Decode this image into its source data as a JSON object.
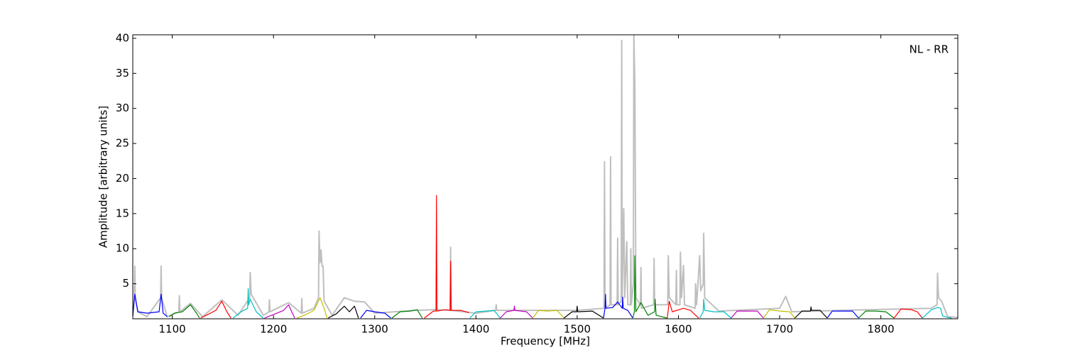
{
  "chart_data": {
    "type": "line",
    "annotation": "NL - RR",
    "legend_position": "upper right",
    "xlabel": "Frequency [MHz]",
    "ylabel": "Amplitude [arbitrary units]",
    "xlim": [
      1061,
      1876
    ],
    "ylim": [
      0,
      40.5
    ],
    "xticks": [
      1100,
      1200,
      1300,
      1400,
      1500,
      1600,
      1700,
      1800
    ],
    "yticks": [
      5,
      10,
      15,
      20,
      25,
      30,
      35,
      40
    ],
    "grid": false,
    "series": [
      {
        "color": "#bfbfbf",
        "width": 2,
        "x": [
          1061,
          1062.5,
          1063,
          1063.5,
          1066,
          1075,
          1088.5,
          1089,
          1089.5,
          1095,
          1106.5,
          1107,
          1107.5,
          1118,
          1130,
          1149,
          1165,
          1176.5,
          1177,
          1178,
          1190,
          1195.5,
          1196,
          1196.5,
          1215,
          1227.5,
          1228,
          1228.5,
          1240,
          1244.5,
          1245,
          1246,
          1247,
          1248,
          1249,
          1250,
          1258,
          1270,
          1280,
          1290,
          1300,
          1340,
          1361,
          1374.5,
          1375,
          1375.5,
          1400,
          1419.5,
          1420,
          1420.5,
          1500,
          1526.5,
          1527,
          1527.5,
          1532.5,
          1533,
          1533.5,
          1539.5,
          1540,
          1540.5,
          1543.5,
          1544,
          1544.5,
          1546,
          1547,
          1549,
          1550,
          1552.5,
          1553,
          1553.5,
          1555.5,
          1556,
          1557,
          1558,
          1562.5,
          1563,
          1563.5,
          1575.5,
          1576,
          1576.5,
          1589.5,
          1590,
          1591,
          1597.5,
          1598,
          1598.5,
          1601.5,
          1602,
          1603,
          1605,
          1606,
          1616.5,
          1617,
          1618,
          1621,
          1622,
          1624.5,
          1625,
          1626,
          1640,
          1700,
          1706,
          1712,
          1760,
          1850,
          1855.5,
          1856,
          1857,
          1860,
          1866,
          1876
        ],
        "values": [
          0.5,
          3,
          7.5,
          3,
          1,
          0.3,
          3,
          7.5,
          3,
          0.3,
          1,
          3.3,
          1,
          2.2,
          0.3,
          2.7,
          0.5,
          3,
          6.6,
          3.5,
          0.5,
          1,
          2.7,
          1,
          2.3,
          0.8,
          2.9,
          0.8,
          1.5,
          3,
          12.5,
          8,
          9.8,
          7.5,
          7.5,
          2.5,
          0.5,
          3,
          2.5,
          2.4,
          0.8,
          1.2,
          1.3,
          1.2,
          10.2,
          1.2,
          0.8,
          1.2,
          2,
          1.2,
          1.2,
          1.5,
          22.4,
          1.5,
          2,
          23.1,
          2,
          2,
          11.5,
          2,
          2.5,
          39.7,
          3,
          15.7,
          3,
          11,
          2,
          2,
          10,
          2,
          5,
          40.5,
          33.5,
          3,
          2,
          7.3,
          1.5,
          2,
          8.6,
          2,
          2,
          9,
          3,
          2,
          6.9,
          2,
          2,
          9.5,
          3,
          7.6,
          2,
          1.5,
          5,
          2,
          9,
          4,
          5,
          12.2,
          3,
          1.1,
          1.5,
          3.2,
          1,
          1.2,
          1.5,
          2,
          6.5,
          3,
          2.5,
          0.3,
          0.2
        ]
      },
      {
        "color": "#0000ff",
        "x": [
          1061,
          1063,
          1066,
          1075,
          1087,
          1089,
          1091,
          1095
        ],
        "values": [
          0.3,
          3.5,
          1,
          0.8,
          1,
          3.5,
          0.8,
          0.3
        ]
      },
      {
        "color": "#008000",
        "x": [
          1097,
          1102,
          1110,
          1118,
          1124,
          1127
        ],
        "values": [
          0.3,
          0.8,
          1,
          2,
          0.8,
          0.1
        ]
      },
      {
        "color": "#ff0000",
        "x": [
          1128,
          1135,
          1143,
          1149,
          1154,
          1158
        ],
        "values": [
          0.1,
          0.6,
          1.2,
          2.5,
          1,
          0.1
        ]
      },
      {
        "color": "#00bfbf",
        "x": [
          1160,
          1168,
          1174.5,
          1175,
          1175.5,
          1177,
          1183,
          1190
        ],
        "values": [
          0.1,
          1,
          1.5,
          4.3,
          2,
          2.8,
          1,
          0.1
        ]
      },
      {
        "color": "#bf00bf",
        "x": [
          1191,
          1200,
          1210,
          1215,
          1218,
          1221
        ],
        "values": [
          0.1,
          0.6,
          1.2,
          2,
          1,
          0.1
        ]
      },
      {
        "color": "#bfbf00",
        "x": [
          1223,
          1232,
          1240,
          1246,
          1250,
          1253
        ],
        "values": [
          0.1,
          0.6,
          1.2,
          3,
          1.5,
          0.1
        ]
      },
      {
        "color": "#000000",
        "x": [
          1254,
          1262,
          1270,
          1275,
          1280,
          1284
        ],
        "values": [
          0.1,
          0.7,
          1.8,
          1,
          1.8,
          0.1
        ]
      },
      {
        "color": "#0000ff",
        "x": [
          1286,
          1292,
          1300,
          1310,
          1316
        ],
        "values": [
          0.1,
          1.2,
          1,
          0.8,
          0.1
        ]
      },
      {
        "color": "#008000",
        "x": [
          1317,
          1325,
          1335,
          1342,
          1347
        ],
        "values": [
          0.1,
          1,
          1.1,
          1.3,
          0.1
        ]
      },
      {
        "color": "#ff0000",
        "x": [
          1349,
          1358,
          1360.5,
          1361,
          1361.5,
          1370,
          1374.5,
          1375,
          1375.5,
          1385,
          1393
        ],
        "values": [
          0.1,
          1.1,
          1.1,
          17.6,
          1.1,
          1.3,
          1.2,
          8.2,
          1.2,
          1.2,
          0.9
        ]
      },
      {
        "color": "#00bfbf",
        "x": [
          1394,
          1400,
          1410,
          1418,
          1424
        ],
        "values": [
          0.1,
          1,
          1.1,
          1.2,
          0.1
        ]
      },
      {
        "color": "#bf00bf",
        "x": [
          1424,
          1430,
          1437.5,
          1438,
          1438.5,
          1450,
          1456
        ],
        "values": [
          0.1,
          1,
          1.2,
          1.8,
          1.2,
          1,
          0.1
        ]
      },
      {
        "color": "#bfbf00",
        "x": [
          1456,
          1462,
          1470,
          1480,
          1487
        ],
        "values": [
          0.1,
          1.2,
          1.1,
          1.2,
          0.1
        ]
      },
      {
        "color": "#000000",
        "x": [
          1487,
          1495,
          1499.5,
          1500,
          1500.5,
          1515,
          1526
        ],
        "values": [
          0.1,
          1,
          1,
          1.8,
          1,
          1.1,
          0.1
        ]
      },
      {
        "color": "#0000ff",
        "x": [
          1526,
          1527.5,
          1528,
          1528.5,
          1535,
          1540,
          1544.5,
          1545,
          1545.5,
          1550,
          1555
        ],
        "values": [
          0.1,
          1.5,
          3.5,
          1.5,
          1.6,
          2.4,
          1.5,
          3.1,
          1.5,
          1.2,
          0.1
        ]
      },
      {
        "color": "#008000",
        "x": [
          1555,
          1556.5,
          1557,
          1558,
          1563,
          1570,
          1576.5,
          1577,
          1578,
          1589
        ],
        "values": [
          0.1,
          1,
          9,
          1,
          2.3,
          0.5,
          1,
          2.8,
          0.5,
          0.1
        ]
      },
      {
        "color": "#ff0000",
        "x": [
          1589,
          1591,
          1594,
          1605,
          1612,
          1620
        ],
        "values": [
          0.1,
          2.5,
          1,
          1.5,
          1.2,
          0.1
        ]
      },
      {
        "color": "#00bfbf",
        "x": [
          1621,
          1624.5,
          1625,
          1626,
          1635,
          1645,
          1652
        ],
        "values": [
          0.1,
          1,
          2.8,
          1.2,
          1,
          1,
          0.1
        ]
      },
      {
        "color": "#bf00bf",
        "x": [
          1652,
          1658,
          1670,
          1678,
          1684
        ],
        "values": [
          0.1,
          1.1,
          1.1,
          1.1,
          0.1
        ]
      },
      {
        "color": "#bfbf00",
        "x": [
          1684,
          1690,
          1700,
          1710,
          1715
        ],
        "values": [
          0.1,
          1.3,
          1.1,
          1,
          0.1
        ]
      },
      {
        "color": "#000000",
        "x": [
          1715,
          1722,
          1730.5,
          1731,
          1731.5,
          1740,
          1747
        ],
        "values": [
          0.1,
          1.1,
          1.1,
          1.7,
          1.2,
          1.2,
          0.1
        ]
      },
      {
        "color": "#0000ff",
        "x": [
          1747,
          1752,
          1762,
          1772,
          1778
        ],
        "values": [
          0.1,
          1.1,
          1.1,
          1.1,
          0.1
        ]
      },
      {
        "color": "#008000",
        "x": [
          1778,
          1785,
          1795,
          1805,
          1813
        ],
        "values": [
          0.1,
          1.1,
          1.1,
          1,
          0.1
        ]
      },
      {
        "color": "#ff0000",
        "x": [
          1813,
          1820,
          1830,
          1836,
          1841
        ],
        "values": [
          0.1,
          1.4,
          1.3,
          1,
          0.1
        ]
      },
      {
        "color": "#00bfbf",
        "x": [
          1841,
          1850,
          1856,
          1859,
          1861,
          1866,
          1870
        ],
        "values": [
          0.1,
          1.3,
          1.6,
          1.5,
          0.4,
          0.2,
          0.1
        ]
      }
    ]
  }
}
